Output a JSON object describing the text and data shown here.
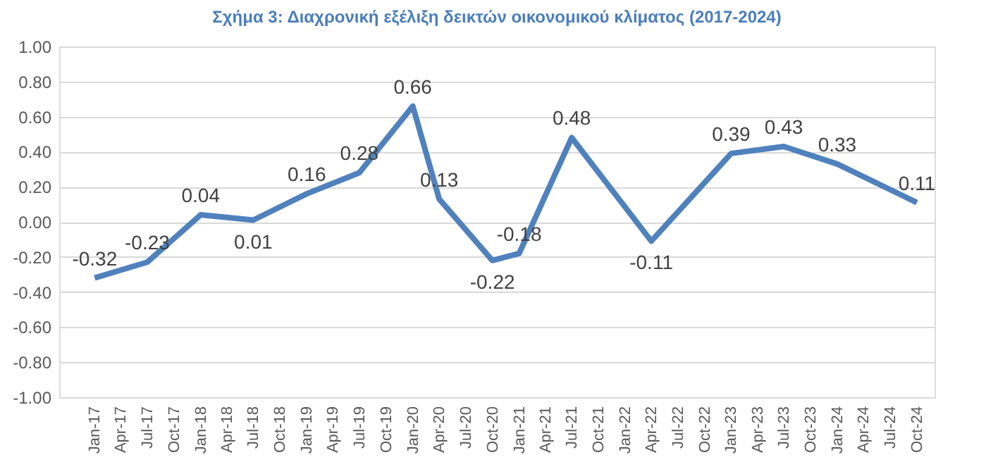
{
  "chart_data": {
    "type": "line",
    "title": "Σχήμα 3: Διαχρονική εξέλιξη δεικτών οικονομικού κλίματος (2017-2024)",
    "x": [
      "2017-01",
      "2017-07",
      "2018-01",
      "2018-07",
      "2019-01",
      "2019-07",
      "2020-01",
      "2020-04",
      "2020-10",
      "2021-01",
      "2021-07",
      "2022-04",
      "2023-01",
      "2023-07",
      "2024-01",
      "2024-10"
    ],
    "series": [
      {
        "color": "#4f81bd",
        "values": [
          -0.32,
          -0.23,
          0.04,
          0.01,
          0.16,
          0.28,
          0.66,
          0.13,
          -0.22,
          -0.18,
          0.48,
          -0.11,
          0.39,
          0.43,
          0.33,
          0.11
        ]
      }
    ],
    "data_labels": true,
    "xlim": [
      "2016-09",
      "2024-12"
    ],
    "xticks": [
      {
        "value": "2017-01",
        "label": "Jan-17"
      },
      {
        "value": "2017-04",
        "label": "Apr-17"
      },
      {
        "value": "2017-07",
        "label": "Jul-17"
      },
      {
        "value": "2017-10",
        "label": "Oct-17"
      },
      {
        "value": "2018-01",
        "label": "Jan-18"
      },
      {
        "value": "2018-04",
        "label": "Apr-18"
      },
      {
        "value": "2018-07",
        "label": "Jul-18"
      },
      {
        "value": "2018-10",
        "label": "Oct-18"
      },
      {
        "value": "2019-01",
        "label": "Jan-19"
      },
      {
        "value": "2019-04",
        "label": "Apr-19"
      },
      {
        "value": "2019-07",
        "label": "Jul-19"
      },
      {
        "value": "2019-10",
        "label": "Oct-19"
      },
      {
        "value": "2020-01",
        "label": "Jan-20"
      },
      {
        "value": "2020-04",
        "label": "Apr-20"
      },
      {
        "value": "2020-07",
        "label": "Jul-20"
      },
      {
        "value": "2020-10",
        "label": "Oct-20"
      },
      {
        "value": "2021-01",
        "label": "Jan-21"
      },
      {
        "value": "2021-04",
        "label": "Apr-21"
      },
      {
        "value": "2021-07",
        "label": "Jul-21"
      },
      {
        "value": "2021-10",
        "label": "Oct-21"
      },
      {
        "value": "2022-01",
        "label": "Jan-22"
      },
      {
        "value": "2022-04",
        "label": "Apr-22"
      },
      {
        "value": "2022-07",
        "label": "Jul-22"
      },
      {
        "value": "2022-10",
        "label": "Oct-22"
      },
      {
        "value": "2023-01",
        "label": "Jan-23"
      },
      {
        "value": "2023-04",
        "label": "Apr-23"
      },
      {
        "value": "2023-07",
        "label": "Jul-23"
      },
      {
        "value": "2023-10",
        "label": "Oct-23"
      },
      {
        "value": "2024-01",
        "label": "Jan-24"
      },
      {
        "value": "2024-04",
        "label": "Apr-24"
      },
      {
        "value": "2024-07",
        "label": "Jul-24"
      },
      {
        "value": "2024-10",
        "label": "Oct-24"
      }
    ],
    "ylim": [
      -1,
      1
    ],
    "yticks": [
      {
        "value": -1,
        "label": "-1.00"
      },
      {
        "value": -0.8,
        "label": "-0.80"
      },
      {
        "value": -0.6,
        "label": "-0.60"
      },
      {
        "value": -0.4,
        "label": "-0.40"
      },
      {
        "value": -0.2,
        "label": "-0.20"
      },
      {
        "value": 0,
        "label": "0.00"
      },
      {
        "value": 0.2,
        "label": "0.20"
      },
      {
        "value": 0.4,
        "label": "0.40"
      },
      {
        "value": 0.6,
        "label": "0.60"
      },
      {
        "value": 0.8,
        "label": "0.80"
      },
      {
        "value": 1,
        "label": "1.00"
      }
    ],
    "grid": "y",
    "line_style": "solid",
    "marker": "none"
  }
}
